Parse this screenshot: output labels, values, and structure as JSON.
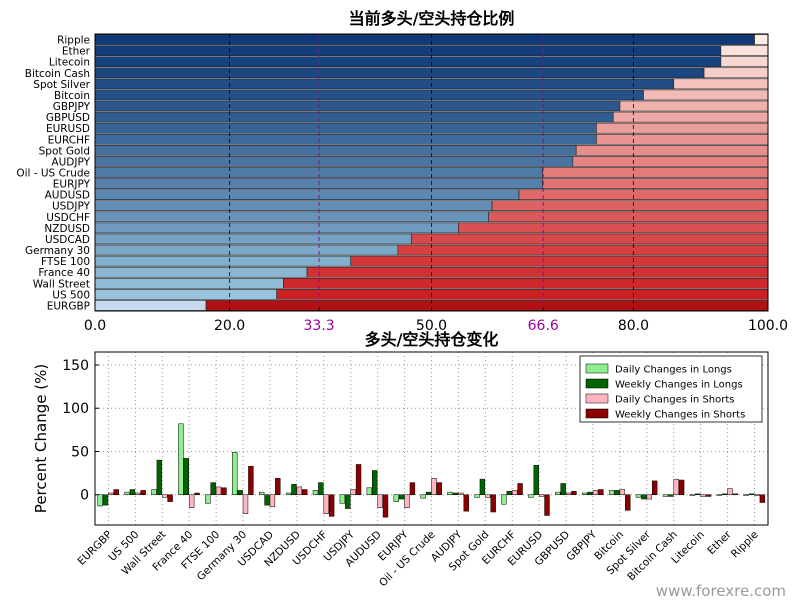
{
  "watermark": "www.forexre.com",
  "chart_data": [
    {
      "type": "bar",
      "orientation": "horizontal-stacked",
      "title": "当前多头/空头持仓比例",
      "xlim": [
        0,
        100
      ],
      "xticks": [
        "0.0",
        "20.0",
        "33.3",
        "50.0",
        "66.6",
        "80.0",
        "100.0"
      ],
      "xtick_values": [
        0,
        20,
        33.3,
        50,
        66.6,
        80,
        100
      ],
      "highlight_ticks": [
        "33.3",
        "66.6"
      ],
      "highlight_color": "#9b009b",
      "categories": [
        "Ripple",
        "Ether",
        "Litecoin",
        "Bitcoin Cash",
        "Spot Silver",
        "Bitcoin",
        "GBPJPY",
        "GBPUSD",
        "EURUSD",
        "EURCHF",
        "Spot Gold",
        "AUDJPY",
        "Oil - US Crude",
        "EURJPY",
        "AUDUSD",
        "USDJPY",
        "USDCHF",
        "NZDUSD",
        "USDCAD",
        "Germany 30",
        "FTSE 100",
        "France 40",
        "Wall Street",
        "US 500",
        "EURGBP"
      ],
      "long_pct": [
        98,
        93,
        93,
        90.5,
        86,
        81.5,
        78,
        77,
        74.5,
        74.5,
        71.5,
        71,
        66.5,
        66.5,
        63,
        59,
        58.5,
        54,
        47,
        45,
        38,
        31.5,
        28,
        27,
        16.5
      ]
    },
    {
      "type": "bar",
      "title": "多头/空头持仓变化",
      "ylabel": "Percent Change (%)",
      "ylim": [
        -35,
        165
      ],
      "yticks": [
        0,
        50,
        100,
        150
      ],
      "grid": true,
      "legend_position": "top-right",
      "categories": [
        "EURGBP",
        "US 500",
        "Wall Street",
        "France 40",
        "FTSE 100",
        "Germany 30",
        "USDCAD",
        "NZDUSD",
        "USDCHF",
        "USDJPY",
        "AUDUSD",
        "EURJPY",
        "Oil - US Crude",
        "AUDJPY",
        "Spot Gold",
        "EURCHF",
        "EURUSD",
        "GBPUSD",
        "GBPJPY",
        "Bitcoin",
        "Spot Silver",
        "Bitcoin Cash",
        "Litecoin",
        "Ether",
        "Ripple"
      ],
      "series": [
        {
          "name": "Daily Changes in Longs",
          "color": "#90ee90",
          "values": [
            -13,
            3,
            6,
            82,
            -10,
            49,
            3,
            2,
            5,
            -10,
            8,
            -8,
            -4,
            3,
            -3,
            -11,
            -3,
            3,
            2,
            5,
            -3,
            -2,
            -1,
            -1,
            -1
          ]
        },
        {
          "name": "Weekly Changes in Longs",
          "color": "#006400",
          "values": [
            -12,
            6,
            40,
            42,
            14,
            5,
            -12,
            12,
            14,
            -16,
            28,
            -5,
            3,
            2,
            18,
            4,
            34,
            13,
            3,
            5,
            -5,
            -2,
            1,
            1,
            1
          ]
        },
        {
          "name": "Daily Changes in Shorts",
          "color": "#ffb6c1",
          "values": [
            2,
            2,
            -3,
            -15,
            9,
            -22,
            -14,
            9,
            -22,
            6,
            -15,
            -15,
            19,
            2,
            -3,
            5,
            -2,
            2,
            5,
            6,
            -5,
            18,
            -2,
            7,
            -1
          ]
        },
        {
          "name": "Weekly Changes in Shorts",
          "color": "#8b0000",
          "values": [
            6,
            5,
            -8,
            2,
            8,
            33,
            19,
            6,
            -25,
            35,
            -26,
            14,
            14,
            -19,
            -20,
            13,
            -24,
            4,
            6,
            -18,
            16,
            17,
            -2,
            1,
            -9
          ]
        }
      ]
    }
  ]
}
